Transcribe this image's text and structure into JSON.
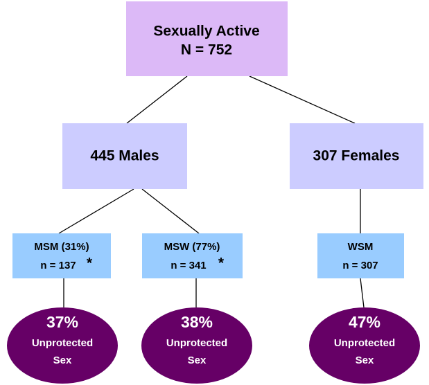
{
  "nodes": [
    {
      "id": "root",
      "lines": [
        "Sexually Active",
        "N = 752"
      ]
    },
    {
      "id": "males",
      "lines": [
        "445 Males"
      ]
    },
    {
      "id": "females",
      "lines": [
        "307 Females"
      ]
    },
    {
      "id": "msm",
      "lines": [
        "MSM (31%)",
        "n = 137"
      ],
      "note": "*"
    },
    {
      "id": "msw",
      "lines": [
        "MSW (77%)",
        "n = 341"
      ],
      "note": "*"
    },
    {
      "id": "wsm",
      "lines": [
        "WSM",
        "n = 307"
      ]
    },
    {
      "id": "msm-outcome",
      "lines": [
        "37%",
        "Unprotected",
        "Sex"
      ]
    },
    {
      "id": "msw-outcome",
      "lines": [
        "38%",
        "Unprotected",
        "Sex"
      ]
    },
    {
      "id": "wsm-outcome",
      "lines": [
        "47%",
        "Unprotected",
        "Sex"
      ]
    }
  ]
}
